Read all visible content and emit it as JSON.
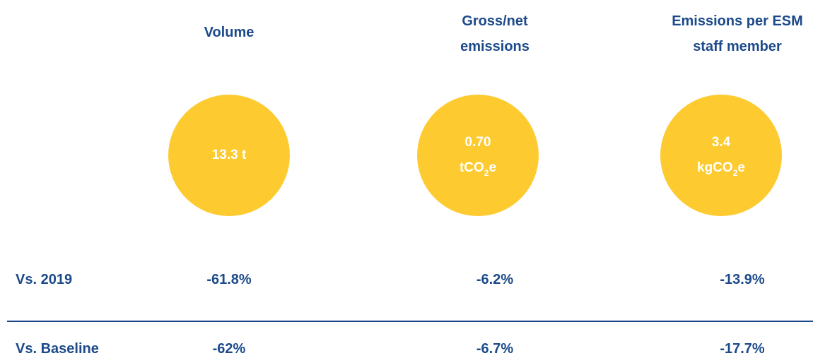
{
  "headers": [
    [
      "Volume"
    ],
    [
      "Gross/net",
      "emissions"
    ],
    [
      "Emissions per ESM",
      "staff member"
    ]
  ],
  "circles": [
    {
      "value": "13.3 t"
    },
    {
      "value": "0.70",
      "unit": [
        "tCO",
        "2",
        "e"
      ]
    },
    {
      "value": "3.4",
      "unit": [
        "kgCO",
        "2",
        "e"
      ]
    }
  ],
  "rows": [
    {
      "label": "Vs. 2019",
      "values": [
        "-61.8%",
        "-6.2%",
        "-13.9%"
      ]
    },
    {
      "label": "Vs. Baseline",
      "values": [
        "-62%",
        "-6.7%",
        "-17.7%"
      ]
    }
  ]
}
